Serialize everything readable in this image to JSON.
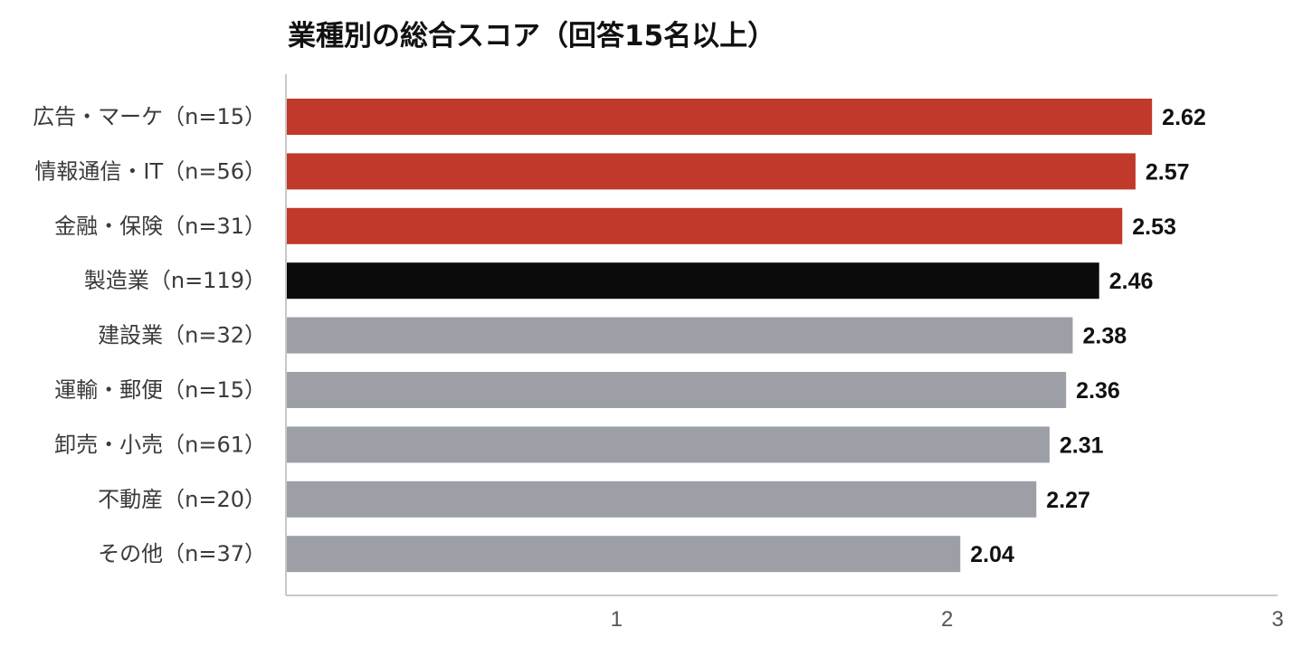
{
  "chart_data": {
    "type": "bar",
    "orientation": "horizontal",
    "title": "業種別の総合スコア（回答15名以上）",
    "xlabel": "",
    "ylabel": "",
    "categories": [
      "広告・マーケ（n=15）",
      "情報通信・IT（n=56）",
      "金融・保険（n=31）",
      "製造業（n=119）",
      "建設業（n=32）",
      "運輸・郵便（n=15）",
      "卸売・小売（n=61）",
      "不動産（n=20）",
      "その他（n=37）"
    ],
    "values": [
      2.62,
      2.57,
      2.53,
      2.46,
      2.38,
      2.36,
      2.31,
      2.27,
      2.04
    ],
    "value_labels": [
      "2.62",
      "2.57",
      "2.53",
      "2.46",
      "2.38",
      "2.36",
      "2.31",
      "2.27",
      "2.04"
    ],
    "bar_colors": [
      "#c0392b",
      "#c0392b",
      "#c0392b",
      "#0b0b0b",
      "#9ca0a6",
      "#9ca0a6",
      "#9ca0a6",
      "#9ca0a6",
      "#9ca0a6"
    ],
    "xlim": [
      0,
      3
    ],
    "xticks": [
      1,
      2,
      3
    ],
    "xtick_labels": [
      "1",
      "2",
      "3"
    ],
    "grid": false,
    "legend": "none",
    "axis_color": "#c8c8c8"
  }
}
